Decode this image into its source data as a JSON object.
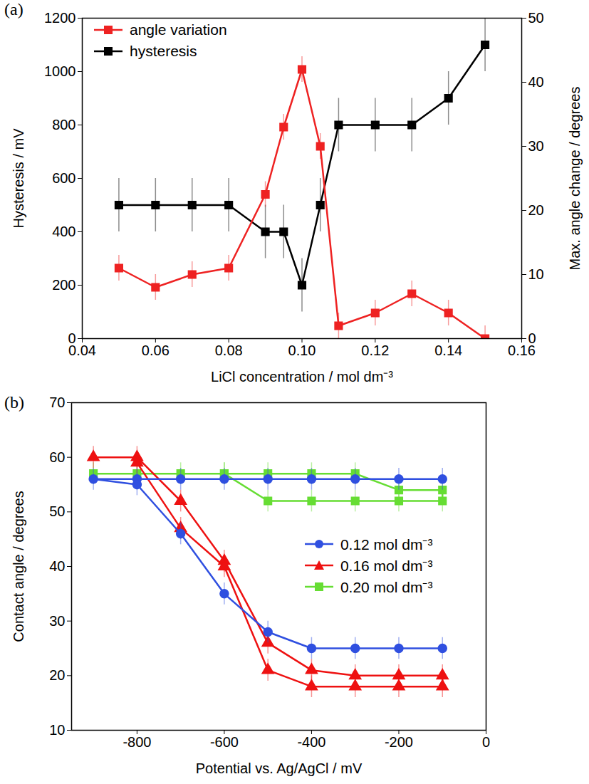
{
  "chart_data": [
    {
      "type": "line",
      "title": "(a)",
      "x_label": "LiCl concentration / mol dm⁻³",
      "y_label": "Hysteresis / mV",
      "y2_label": "Max. angle change / degrees",
      "x": [
        0.05,
        0.06,
        0.07,
        0.08,
        0.09,
        0.095,
        0.1,
        0.105,
        0.11,
        0.12,
        0.13,
        0.14,
        0.15
      ],
      "series": [
        {
          "name": "angle variation",
          "color": "#ee2222",
          "marker": "square",
          "axis": "y2",
          "values": [
            11,
            8,
            10,
            11,
            22.5,
            33,
            42,
            30,
            2,
            4,
            7,
            4,
            0
          ],
          "errors": [
            2,
            2,
            2,
            2,
            2,
            2,
            2,
            2,
            2,
            2,
            2,
            2,
            2
          ]
        },
        {
          "name": "hysteresis",
          "color": "#000000",
          "marker": "square",
          "values": [
            500,
            500,
            500,
            500,
            400,
            400,
            200,
            500,
            800,
            800,
            800,
            900,
            1100
          ],
          "errors": [
            100,
            100,
            100,
            100,
            100,
            100,
            100,
            100,
            100,
            100,
            100,
            100,
            100
          ]
        }
      ],
      "xlim": [
        0.04,
        0.16
      ],
      "xticks": [
        0.04,
        0.06,
        0.08,
        {
          "value": 0.1,
          "label": "0.10"
        },
        0.12,
        0.14,
        0.16
      ],
      "ylim": [
        0,
        1200
      ],
      "yticks": [
        0,
        200,
        400,
        600,
        800,
        1000,
        1200
      ],
      "y2lim": [
        0,
        50
      ],
      "y2ticks": [
        0,
        10,
        20,
        30,
        40,
        50
      ],
      "legend": "upper left",
      "grid": false
    },
    {
      "type": "line",
      "title": "(b)",
      "x_label": "Potential vs. Ag/AgCl / mV",
      "y_label": "Contact angle / degrees",
      "series": [
        {
          "name": "0.12 mol dm⁻³",
          "color": "#2f4fe0",
          "marker": "circle",
          "x": [
            -100,
            -200,
            -300,
            -400,
            -500,
            -600,
            -700,
            -800,
            -900,
            -800,
            -700,
            -600,
            -500,
            -400,
            -300,
            -200,
            -100
          ],
          "values": [
            56,
            56,
            56,
            56,
            56,
            56,
            56,
            56,
            56,
            55,
            46,
            35,
            28,
            25,
            25,
            25,
            25
          ],
          "errors": [
            2,
            2,
            2,
            2,
            2,
            2,
            2,
            2,
            2,
            2,
            2,
            2,
            2,
            2,
            2,
            2,
            2
          ]
        },
        {
          "name": "0.16 mol dm⁻³",
          "color": "#ee1111",
          "marker": "triangle",
          "x": [
            -900,
            -800,
            -700,
            -600,
            -500,
            -400,
            -300,
            -200,
            -100,
            -100,
            -200,
            -300,
            -400,
            -500,
            -600,
            -700,
            -800
          ],
          "values": [
            60,
            60,
            52,
            41,
            26,
            21,
            20,
            20,
            20,
            18,
            18,
            18,
            18,
            21,
            40,
            47,
            59
          ],
          "errors": [
            2,
            2,
            2,
            2,
            2,
            2,
            2,
            2,
            2,
            2,
            2,
            2,
            2,
            2,
            2,
            2,
            2
          ]
        },
        {
          "name": "0.20 mol dm⁻³",
          "color": "#66dd33",
          "marker": "square",
          "x": [
            -900,
            -800,
            -700,
            -600,
            -500,
            -400,
            -300,
            -200,
            -100,
            -100,
            -200,
            -300,
            -400,
            -500,
            -600
          ],
          "values": [
            57,
            57,
            57,
            57,
            57,
            57,
            57,
            54,
            54,
            52,
            52,
            52,
            52,
            52,
            57
          ],
          "errors": [
            2,
            2,
            2,
            2,
            2,
            2,
            2,
            2,
            2,
            2,
            2,
            2,
            2,
            2,
            2
          ]
        }
      ],
      "xlim": [
        -950,
        0
      ],
      "xticks": [
        -800,
        -600,
        -400,
        -200,
        0
      ],
      "ylim": [
        10,
        70
      ],
      "yticks": [
        10,
        20,
        30,
        40,
        50,
        60,
        70
      ],
      "legend": "center right",
      "grid": false
    }
  ]
}
